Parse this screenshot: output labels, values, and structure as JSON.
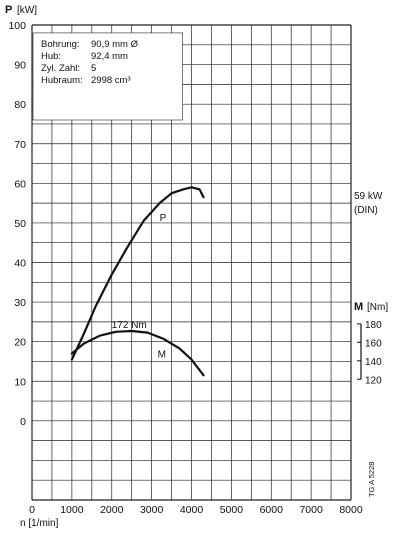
{
  "chart_data": {
    "type": "line",
    "ylabel_symbol": "P",
    "ylabel_unit": "[kW]",
    "xlabel": "n [1/min]",
    "x_ticks": [
      "0",
      "1000",
      "2000",
      "3000",
      "4000",
      "5000",
      "6000",
      "7000",
      "8000"
    ],
    "y_ticks": [
      "100",
      "90",
      "80",
      "70",
      "60",
      "50",
      "40",
      "30",
      "20",
      "10",
      "0"
    ],
    "xlim": [
      0,
      8000
    ],
    "ylim": [
      -20,
      100
    ],
    "grid": true,
    "specs": [
      {
        "label": "Bohrung:",
        "value": "90,9 mm Ø"
      },
      {
        "label": "Hub:",
        "value": "92,4 mm"
      },
      {
        "label": "Zyl. Zahl:",
        "value": "5"
      },
      {
        "label": "Hubraum:",
        "value": "2998 cm³"
      }
    ],
    "power_annotation_value": "59 kW",
    "power_annotation_note": "(DIN)",
    "torque_axis_symbol": "M",
    "torque_axis_unit": "[Nm]",
    "torque_ticks": [
      "180",
      "160",
      "140",
      "120"
    ],
    "torque_axis_values": [
      180,
      160,
      140,
      120
    ],
    "torque_peak_label": "172 Nm",
    "code": "TG A 5228",
    "series": [
      {
        "name": "P",
        "x": [
          1000,
          1300,
          1600,
          2000,
          2400,
          2800,
          3200,
          3500,
          3800,
          4000,
          4200,
          4300
        ],
        "y": [
          15.5,
          22,
          29,
          37,
          44,
          50.5,
          55,
          57.5,
          58.5,
          59,
          58.5,
          56.5
        ]
      },
      {
        "name": "M",
        "x": [
          1000,
          1300,
          1700,
          2100,
          2500,
          2900,
          3300,
          3700,
          4000,
          4300
        ],
        "y": [
          17,
          19.5,
          21.5,
          22.5,
          22.7,
          22.3,
          20.7,
          18.3,
          15.5,
          11.5
        ]
      }
    ],
    "colors": {
      "line": "#111111",
      "grid": "#222222",
      "background": "#ffffff"
    }
  }
}
